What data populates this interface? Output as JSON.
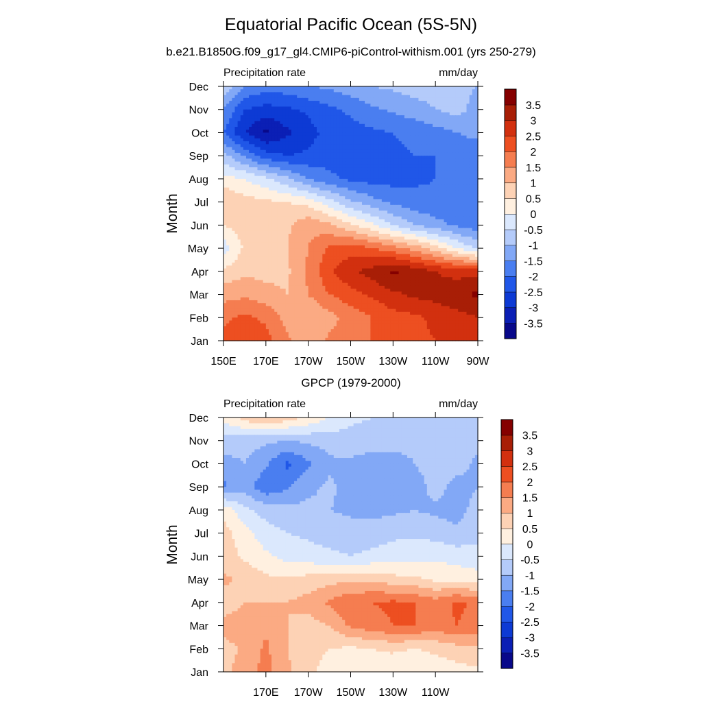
{
  "figure": {
    "title": "Equatorial Pacific Ocean (5S-5N)",
    "subtitle": "b.e21.B1850G.f09_g17_gl4.CMIP6-piControl-withism.001 (yrs 250-279)"
  },
  "colorbar": {
    "levels": [
      -3.5,
      -3,
      -2.5,
      -2,
      -1.5,
      -1,
      -0.5,
      0,
      0.5,
      1,
      1.5,
      2,
      2.5,
      3,
      3.5
    ],
    "labels": [
      "3.5",
      "3",
      "2.5",
      "2",
      "1.5",
      "1",
      "0.5",
      "0",
      "-0.5",
      "-1",
      "-1.5",
      "-2",
      "-2.5",
      "-3",
      "-3.5"
    ],
    "colors": [
      "#08088a",
      "#0b1fb5",
      "#0d3ad4",
      "#2057e8",
      "#4a7ef0",
      "#82a8f6",
      "#b4cbfa",
      "#dbe8fd",
      "#fff0e0",
      "#fdd2b5",
      "#fbaa83",
      "#f57d50",
      "#ed4f21",
      "#d2300f",
      "#a81e06",
      "#850000"
    ]
  },
  "chart_data": [
    {
      "type": "heatmap",
      "title": "",
      "left_label": "Precipitation rate",
      "right_label": "mm/day",
      "ylabel": "Month",
      "xlabel": "",
      "x_ticks": [
        "150E",
        "170E",
        "170W",
        "150W",
        "130W",
        "110W",
        "90W"
      ],
      "x_ticks_values": [
        150,
        170,
        190,
        210,
        230,
        250,
        270
      ],
      "xlim": [
        150,
        270
      ],
      "y_ticks": [
        "Jan",
        "Feb",
        "Mar",
        "Apr",
        "May",
        "Jun",
        "Jul",
        "Aug",
        "Sep",
        "Oct",
        "Nov",
        "Dec"
      ],
      "ylim": [
        1,
        12
      ],
      "colorbar_levels": [
        -3.5,
        -3,
        -2.5,
        -2,
        -1.5,
        -1,
        -0.5,
        0,
        0.5,
        1,
        1.5,
        2,
        2.5,
        3,
        3.5
      ],
      "grid_lon": [
        150,
        160,
        170,
        180,
        190,
        200,
        210,
        220,
        230,
        240,
        250,
        260,
        270
      ],
      "grid_month": [
        1,
        2,
        3,
        4,
        5,
        6,
        7,
        8,
        9,
        10,
        11,
        12
      ],
      "values": [
        [
          2.1,
          2.3,
          2.2,
          1.6,
          1.2,
          1.6,
          1.8,
          2.0,
          2.2,
          2.4,
          2.5,
          2.6,
          2.8
        ],
        [
          1.9,
          2.1,
          1.9,
          1.3,
          1.0,
          1.3,
          1.7,
          2.0,
          2.3,
          2.4,
          2.6,
          2.8,
          3.0
        ],
        [
          1.3,
          1.4,
          1.2,
          1.0,
          1.5,
          2.0,
          2.3,
          2.6,
          2.9,
          3.1,
          3.2,
          3.4,
          3.6
        ],
        [
          0.6,
          0.9,
          0.8,
          0.9,
          1.6,
          2.4,
          2.9,
          3.2,
          3.6,
          3.3,
          3.0,
          2.8,
          2.8
        ],
        [
          -0.3,
          0.6,
          0.7,
          1.0,
          1.5,
          2.1,
          2.3,
          2.0,
          1.7,
          1.3,
          0.7,
          0.0,
          -0.6
        ],
        [
          0.5,
          0.8,
          1.0,
          0.9,
          1.4,
          1.1,
          0.6,
          0.1,
          -0.5,
          -1.0,
          -1.3,
          -1.6,
          -1.8
        ],
        [
          1.0,
          0.7,
          0.6,
          0.5,
          0.3,
          -0.3,
          -0.9,
          -1.3,
          -1.6,
          -1.8,
          -1.9,
          -1.9,
          -2.0
        ],
        [
          0.2,
          0.0,
          -0.4,
          -0.9,
          -1.5,
          -1.9,
          -2.1,
          -2.2,
          -2.2,
          -2.1,
          -2.0,
          -2.0,
          -2.0
        ],
        [
          -0.8,
          -1.6,
          -2.3,
          -2.5,
          -2.4,
          -2.2,
          -2.2,
          -2.2,
          -2.1,
          -2.0,
          -2.0,
          -1.9,
          -2.0
        ],
        [
          -2.0,
          -3.0,
          -3.6,
          -3.1,
          -2.7,
          -2.3,
          -2.2,
          -2.1,
          -2.0,
          -1.9,
          -1.7,
          -1.5,
          -1.3
        ],
        [
          -1.5,
          -2.5,
          -2.7,
          -2.6,
          -2.4,
          -2.1,
          -1.9,
          -1.6,
          -1.4,
          -1.2,
          -1.0,
          -0.8,
          -1.2
        ],
        [
          -0.5,
          -1.5,
          -1.8,
          -1.7,
          -1.5,
          -1.4,
          -1.2,
          -1.0,
          -0.9,
          -0.8,
          -0.8,
          -0.9,
          -1.0
        ]
      ]
    },
    {
      "type": "heatmap",
      "title": "GPCP (1979-2000)",
      "left_label": "Precipitation rate",
      "right_label": "mm/day",
      "ylabel": "Month",
      "xlabel": "",
      "x_ticks": [
        "170E",
        "170W",
        "150W",
        "130W",
        "110W"
      ],
      "x_ticks_values": [
        170,
        190,
        210,
        230,
        250
      ],
      "xlim": [
        150,
        270
      ],
      "y_ticks": [
        "Jan",
        "Feb",
        "Mar",
        "Apr",
        "May",
        "Jun",
        "Jul",
        "Aug",
        "Sep",
        "Oct",
        "Nov",
        "Dec"
      ],
      "ylim": [
        1,
        12
      ],
      "colorbar_levels": [
        -3.5,
        -3,
        -2.5,
        -2,
        -1.5,
        -1,
        -0.5,
        0,
        0.5,
        1,
        1.5,
        2,
        2.5,
        3,
        3.5
      ],
      "grid_lon": [
        150,
        160,
        170,
        180,
        190,
        200,
        210,
        220,
        230,
        240,
        250,
        260,
        270
      ],
      "grid_month": [
        1,
        2,
        3,
        4,
        5,
        6,
        7,
        8,
        9,
        10,
        11,
        12
      ],
      "values": [
        [
          0.9,
          1.2,
          1.7,
          1.1,
          0.6,
          0.3,
          0.3,
          0.2,
          0.1,
          0.0,
          0.2,
          0.3,
          0.4
        ],
        [
          0.8,
          1.1,
          1.6,
          1.0,
          0.7,
          0.5,
          0.4,
          0.5,
          0.6,
          0.5,
          0.6,
          0.8,
          0.9
        ],
        [
          1.2,
          1.3,
          1.4,
          1.0,
          0.8,
          1.0,
          1.6,
          1.8,
          2.0,
          2.0,
          1.8,
          2.0,
          1.8
        ],
        [
          0.7,
          1.0,
          1.0,
          1.0,
          1.2,
          1.6,
          1.9,
          2.0,
          2.1,
          2.0,
          1.7,
          2.1,
          1.9
        ],
        [
          1.1,
          0.9,
          0.6,
          0.6,
          0.7,
          0.8,
          0.9,
          0.9,
          0.7,
          0.6,
          0.4,
          0.3,
          0.2
        ],
        [
          0.8,
          0.4,
          0.1,
          -0.2,
          -0.3,
          -0.4,
          -0.5,
          -0.4,
          -0.3,
          -0.2,
          -0.1,
          -0.2,
          -0.3
        ],
        [
          0.7,
          0.2,
          -0.3,
          -0.5,
          -0.6,
          -0.7,
          -0.8,
          -0.7,
          -0.6,
          -0.6,
          -0.7,
          -0.9,
          -0.7
        ],
        [
          0.4,
          -0.4,
          -0.7,
          -0.8,
          -0.9,
          -1.0,
          -1.1,
          -1.2,
          -1.1,
          -1.0,
          -1.1,
          -1.2,
          -0.8
        ],
        [
          -1.6,
          -1.2,
          -1.9,
          -1.6,
          -1.1,
          -0.9,
          -1.2,
          -1.4,
          -1.4,
          -1.3,
          -0.8,
          -1.2,
          -1.0
        ],
        [
          -1.2,
          -1.0,
          -1.4,
          -2.1,
          -1.6,
          -1.1,
          -1.1,
          -1.3,
          -1.2,
          -1.0,
          -0.7,
          -0.8,
          -1.1
        ],
        [
          -0.7,
          -0.8,
          -0.9,
          -1.0,
          -0.9,
          -0.8,
          -0.7,
          -0.7,
          -0.8,
          -0.9,
          -0.8,
          -0.8,
          -0.9
        ],
        [
          0.2,
          0.7,
          1.1,
          0.8,
          0.4,
          0.0,
          -0.4,
          -0.5,
          -0.6,
          -0.6,
          -0.6,
          -0.6,
          -0.7
        ]
      ]
    }
  ]
}
